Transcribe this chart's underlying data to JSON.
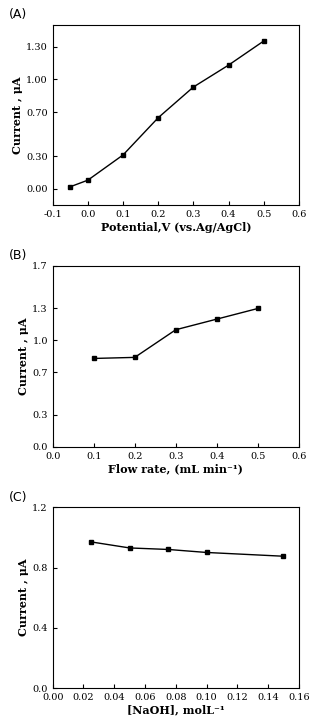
{
  "panel_A": {
    "label": "(A)",
    "x": [
      -0.05,
      0.0,
      0.1,
      0.2,
      0.3,
      0.4,
      0.5
    ],
    "y": [
      0.02,
      0.08,
      0.31,
      0.65,
      0.93,
      1.13,
      1.35
    ],
    "xlabel": "Potential,V (vs.Ag/AgCl)",
    "ylabel": "Current , μA",
    "xlim": [
      -0.1,
      0.6
    ],
    "ylim": [
      -0.15,
      1.5
    ],
    "xticks": [
      -0.1,
      0.0,
      0.1,
      0.2,
      0.3,
      0.4,
      0.5,
      0.6
    ],
    "yticks": [
      0.0,
      0.3,
      0.7,
      1.0,
      1.3
    ],
    "xticklabels": [
      "-0.1",
      "0.0",
      "0.1",
      "0.2",
      "0.3",
      "0.4",
      "0.5",
      "0.6"
    ],
    "yticklabels": [
      "0.00",
      "0.30",
      "0.70",
      "1.00",
      "1.30"
    ]
  },
  "panel_B": {
    "label": "(B)",
    "x": [
      0.1,
      0.2,
      0.3,
      0.4,
      0.5
    ],
    "y": [
      0.83,
      0.84,
      1.1,
      1.2,
      1.3
    ],
    "xlabel": "Flow rate, (mL min⁻¹)",
    "ylabel": "Current , μA",
    "xlim": [
      0.0,
      0.6
    ],
    "ylim": [
      0.0,
      1.7
    ],
    "xticks": [
      0.0,
      0.1,
      0.2,
      0.3,
      0.4,
      0.5,
      0.6
    ],
    "yticks": [
      0.0,
      0.3,
      0.7,
      1.0,
      1.3,
      1.7
    ],
    "xticklabels": [
      "0.0",
      "0.1",
      "0.2",
      "0.3",
      "0.4",
      "0.5",
      "0.6"
    ],
    "yticklabels": [
      "0.0",
      "0.3",
      "0.7",
      "1.0",
      "1.3",
      "1.7"
    ]
  },
  "panel_C": {
    "label": "(C)",
    "x": [
      0.025,
      0.05,
      0.075,
      0.1,
      0.15
    ],
    "y": [
      0.97,
      0.93,
      0.92,
      0.9,
      0.875
    ],
    "xlabel": "[NaOH], molL⁻¹",
    "ylabel": "Current , μA",
    "xlim": [
      0.0,
      0.16
    ],
    "ylim": [
      0.0,
      1.2
    ],
    "xticks": [
      0.0,
      0.02,
      0.04,
      0.06,
      0.08,
      0.1,
      0.12,
      0.14,
      0.16
    ],
    "yticks": [
      0.0,
      0.4,
      0.8,
      1.2
    ],
    "xticklabels": [
      "0.00",
      "0.02",
      "0.04",
      "0.06",
      "0.08",
      "0.10",
      "0.12",
      "0.14",
      "0.16"
    ],
    "yticklabels": [
      "0.0",
      "0.4",
      "0.8",
      "1.2"
    ]
  },
  "line_color": "#000000",
  "marker": "s",
  "markersize": 3.5,
  "linewidth": 1.0,
  "label_fontsize": 9,
  "tick_fontsize": 7,
  "axis_label_fontsize": 8,
  "font_family": "serif"
}
